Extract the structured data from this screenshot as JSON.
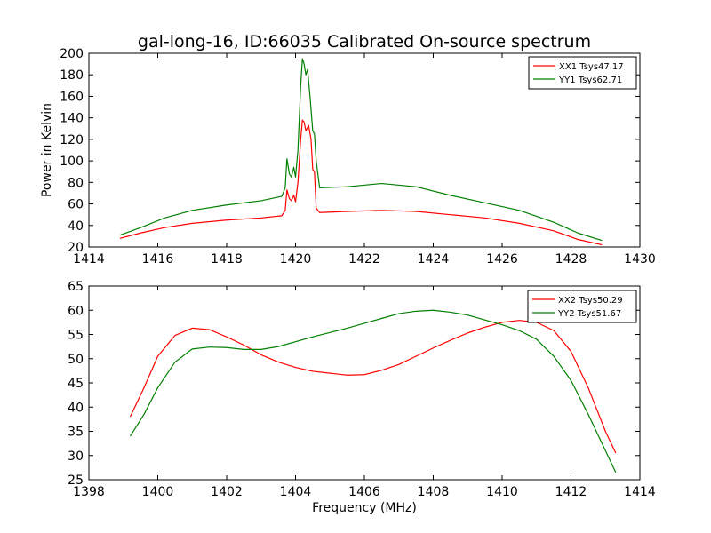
{
  "chart_data": [
    {
      "type": "line",
      "title": "gal-long-16, ID:66035 Calibrated On-source spectrum",
      "xlabel": "",
      "ylabel": "Power in Kelvin",
      "xlim": [
        1414,
        1430
      ],
      "ylim": [
        20,
        200
      ],
      "xticks": [
        "1414",
        "1416",
        "1418",
        "1420",
        "1422",
        "1424",
        "1426",
        "1428",
        "1430"
      ],
      "yticks": [
        "20",
        "40",
        "60",
        "80",
        "100",
        "120",
        "140",
        "160",
        "180",
        "200"
      ],
      "legend_position": "top-right",
      "grid": false,
      "series": [
        {
          "name": "XX1 Tsys47.17",
          "color": "#ff0000",
          "points": [
            [
              1414.9,
              28
            ],
            [
              1415.5,
              33
            ],
            [
              1416.2,
              38
            ],
            [
              1417,
              42
            ],
            [
              1418,
              45
            ],
            [
              1419,
              47
            ],
            [
              1419.6,
              49
            ],
            [
              1419.7,
              54
            ],
            [
              1419.75,
              73
            ],
            [
              1419.82,
              65
            ],
            [
              1419.88,
              63
            ],
            [
              1419.95,
              68
            ],
            [
              1420.0,
              62
            ],
            [
              1420.07,
              80
            ],
            [
              1420.15,
              120
            ],
            [
              1420.2,
              138
            ],
            [
              1420.25,
              136
            ],
            [
              1420.3,
              128
            ],
            [
              1420.38,
              133
            ],
            [
              1420.45,
              120
            ],
            [
              1420.5,
              92
            ],
            [
              1420.55,
              90
            ],
            [
              1420.6,
              56
            ],
            [
              1420.7,
              52
            ],
            [
              1421.5,
              53
            ],
            [
              1422.5,
              54
            ],
            [
              1423.5,
              53
            ],
            [
              1424.5,
              50
            ],
            [
              1425.5,
              47
            ],
            [
              1426.5,
              42
            ],
            [
              1427.5,
              35
            ],
            [
              1428.2,
              27
            ],
            [
              1428.9,
              22
            ]
          ]
        },
        {
          "name": "YY1 Tsys62.71",
          "color": "#008000",
          "points": [
            [
              1414.9,
              31
            ],
            [
              1415.5,
              38
            ],
            [
              1416.2,
              47
            ],
            [
              1417,
              54
            ],
            [
              1418,
              59
            ],
            [
              1419,
              63
            ],
            [
              1419.6,
              67
            ],
            [
              1419.7,
              75
            ],
            [
              1419.75,
              102
            ],
            [
              1419.82,
              88
            ],
            [
              1419.88,
              85
            ],
            [
              1419.95,
              94
            ],
            [
              1420.0,
              85
            ],
            [
              1420.07,
              110
            ],
            [
              1420.15,
              170
            ],
            [
              1420.2,
              195
            ],
            [
              1420.25,
              190
            ],
            [
              1420.3,
              180
            ],
            [
              1420.35,
              185
            ],
            [
              1420.42,
              160
            ],
            [
              1420.5,
              128
            ],
            [
              1420.55,
              125
            ],
            [
              1420.6,
              100
            ],
            [
              1420.7,
              75
            ],
            [
              1421.5,
              76
            ],
            [
              1422.5,
              79
            ],
            [
              1423.5,
              76
            ],
            [
              1424.5,
              68
            ],
            [
              1425.5,
              61
            ],
            [
              1426.5,
              54
            ],
            [
              1427.5,
              43
            ],
            [
              1428.2,
              33
            ],
            [
              1428.9,
              26
            ]
          ]
        }
      ]
    },
    {
      "type": "line",
      "title": "",
      "xlabel": "Frequency (MHz)",
      "ylabel": "",
      "xlim": [
        1398,
        1414
      ],
      "ylim": [
        25,
        65
      ],
      "xticks": [
        "1398",
        "1400",
        "1402",
        "1404",
        "1406",
        "1408",
        "1410",
        "1412",
        "1414"
      ],
      "yticks": [
        "25",
        "30",
        "35",
        "40",
        "45",
        "50",
        "55",
        "60",
        "65"
      ],
      "legend_position": "top-right",
      "grid": false,
      "series": [
        {
          "name": "XX2 Tsys50.29",
          "color": "#ff0000",
          "points": [
            [
              1399.2,
              38
            ],
            [
              1399.6,
              44
            ],
            [
              1400,
              50.5
            ],
            [
              1400.5,
              54.8
            ],
            [
              1401,
              56.3
            ],
            [
              1401.5,
              56
            ],
            [
              1402,
              54.5
            ],
            [
              1402.5,
              52.8
            ],
            [
              1403,
              50.8
            ],
            [
              1403.5,
              49.3
            ],
            [
              1404,
              48.2
            ],
            [
              1404.5,
              47.4
            ],
            [
              1405,
              47
            ],
            [
              1405.5,
              46.6
            ],
            [
              1406,
              46.7
            ],
            [
              1406.5,
              47.6
            ],
            [
              1407,
              48.8
            ],
            [
              1407.5,
              50.5
            ],
            [
              1408,
              52.2
            ],
            [
              1408.5,
              53.8
            ],
            [
              1409,
              55.3
            ],
            [
              1409.5,
              56.5
            ],
            [
              1410,
              57.5
            ],
            [
              1410.5,
              57.9
            ],
            [
              1411,
              57.5
            ],
            [
              1411.5,
              55.8
            ],
            [
              1412,
              51.5
            ],
            [
              1412.5,
              44
            ],
            [
              1413,
              35
            ],
            [
              1413.3,
              30.5
            ]
          ]
        },
        {
          "name": "YY2 Tsys51.67",
          "color": "#008000",
          "points": [
            [
              1399.2,
              34
            ],
            [
              1399.6,
              38.5
            ],
            [
              1400,
              44
            ],
            [
              1400.5,
              49.3
            ],
            [
              1401,
              52
            ],
            [
              1401.5,
              52.4
            ],
            [
              1402,
              52.3
            ],
            [
              1402.5,
              51.9
            ],
            [
              1403,
              51.9
            ],
            [
              1403.5,
              52.5
            ],
            [
              1404,
              53.5
            ],
            [
              1404.5,
              54.5
            ],
            [
              1405,
              55.4
            ],
            [
              1405.5,
              56.3
            ],
            [
              1406,
              57.3
            ],
            [
              1406.5,
              58.3
            ],
            [
              1407,
              59.3
            ],
            [
              1407.5,
              59.8
            ],
            [
              1408,
              60
            ],
            [
              1408.5,
              59.6
            ],
            [
              1409,
              59
            ],
            [
              1409.5,
              58
            ],
            [
              1410,
              57
            ],
            [
              1410.5,
              55.8
            ],
            [
              1411,
              54
            ],
            [
              1411.5,
              50.5
            ],
            [
              1412,
              45.5
            ],
            [
              1412.5,
              38.5
            ],
            [
              1413,
              31
            ],
            [
              1413.3,
              26.5
            ]
          ]
        }
      ]
    }
  ]
}
